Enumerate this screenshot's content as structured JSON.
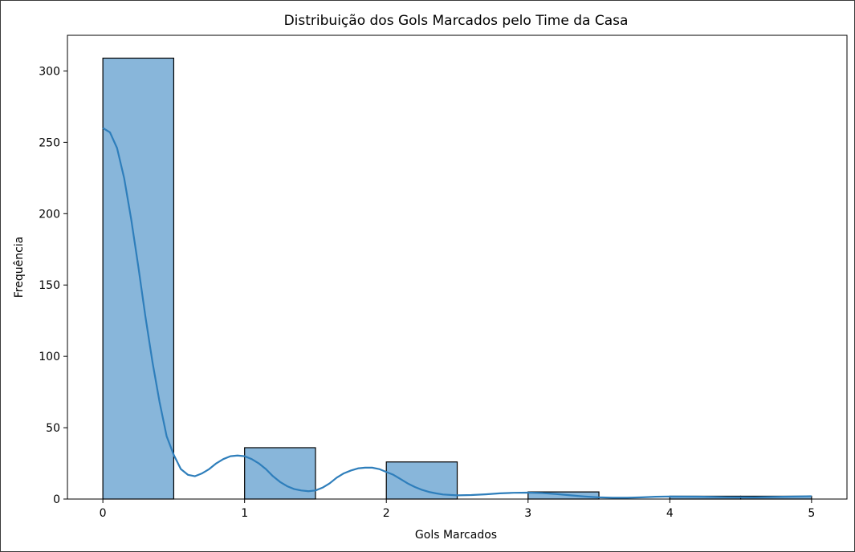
{
  "chart_data": {
    "type": "bar",
    "title": "Distribuição dos Gols Marcados pelo Time da Casa",
    "xlabel": "Gols Marcados",
    "ylabel": "Frequência",
    "xlim": [
      -0.25,
      5.25
    ],
    "ylim": [
      0,
      325
    ],
    "xticks": [
      0,
      1,
      2,
      3,
      4,
      5
    ],
    "yticks": [
      0,
      50,
      100,
      150,
      200,
      250,
      300
    ],
    "grid": false,
    "bins": [
      {
        "x0": 0.0,
        "x1": 0.5,
        "count": 309
      },
      {
        "x0": 0.5,
        "x1": 1.0,
        "count": 0
      },
      {
        "x0": 1.0,
        "x1": 1.5,
        "count": 36
      },
      {
        "x0": 1.5,
        "x1": 2.0,
        "count": 0
      },
      {
        "x0": 2.0,
        "x1": 2.5,
        "count": 26
      },
      {
        "x0": 2.5,
        "x1": 3.0,
        "count": 0
      },
      {
        "x0": 3.0,
        "x1": 3.5,
        "count": 5
      },
      {
        "x0": 3.5,
        "x1": 4.0,
        "count": 0
      },
      {
        "x0": 4.0,
        "x1": 4.5,
        "count": 2
      },
      {
        "x0": 4.5,
        "x1": 5.0,
        "count": 2
      }
    ],
    "kde": {
      "x": [
        0.0,
        0.05,
        0.1,
        0.15,
        0.2,
        0.25,
        0.3,
        0.35,
        0.4,
        0.45,
        0.5,
        0.55,
        0.6,
        0.65,
        0.7,
        0.75,
        0.8,
        0.85,
        0.9,
        0.95,
        1.0,
        1.05,
        1.1,
        1.15,
        1.2,
        1.25,
        1.3,
        1.35,
        1.4,
        1.45,
        1.5,
        1.55,
        1.6,
        1.65,
        1.7,
        1.75,
        1.8,
        1.85,
        1.9,
        1.95,
        2.0,
        2.05,
        2.1,
        2.15,
        2.2,
        2.25,
        2.3,
        2.35,
        2.4,
        2.5,
        2.6,
        2.7,
        2.8,
        2.9,
        3.0,
        3.1,
        3.2,
        3.3,
        3.4,
        3.5,
        3.6,
        3.7,
        3.8,
        3.9,
        4.0,
        4.2,
        4.4,
        4.6,
        4.8,
        5.0
      ],
      "y": [
        260,
        257,
        246,
        225,
        196,
        163,
        128,
        96,
        68,
        44,
        31,
        21,
        17,
        16,
        18,
        21,
        25,
        28,
        30,
        30.5,
        30,
        28,
        25,
        21,
        16,
        12,
        9,
        7,
        6,
        5.5,
        6,
        8,
        11,
        15,
        18,
        20,
        21.5,
        22,
        22,
        21,
        19,
        17,
        14,
        11,
        8.5,
        6.5,
        5,
        4,
        3.2,
        2.6,
        2.8,
        3.3,
        4,
        4.4,
        4.5,
        4.2,
        3.5,
        2.6,
        1.8,
        1.2,
        0.9,
        0.9,
        1.2,
        1.6,
        1.8,
        1.7,
        1.3,
        1.2,
        1.6,
        2.0
      ]
    },
    "colors": {
      "bar_fill": "#88b6da",
      "bar_edge": "#000000",
      "kde_line": "#2e7ebb"
    }
  }
}
